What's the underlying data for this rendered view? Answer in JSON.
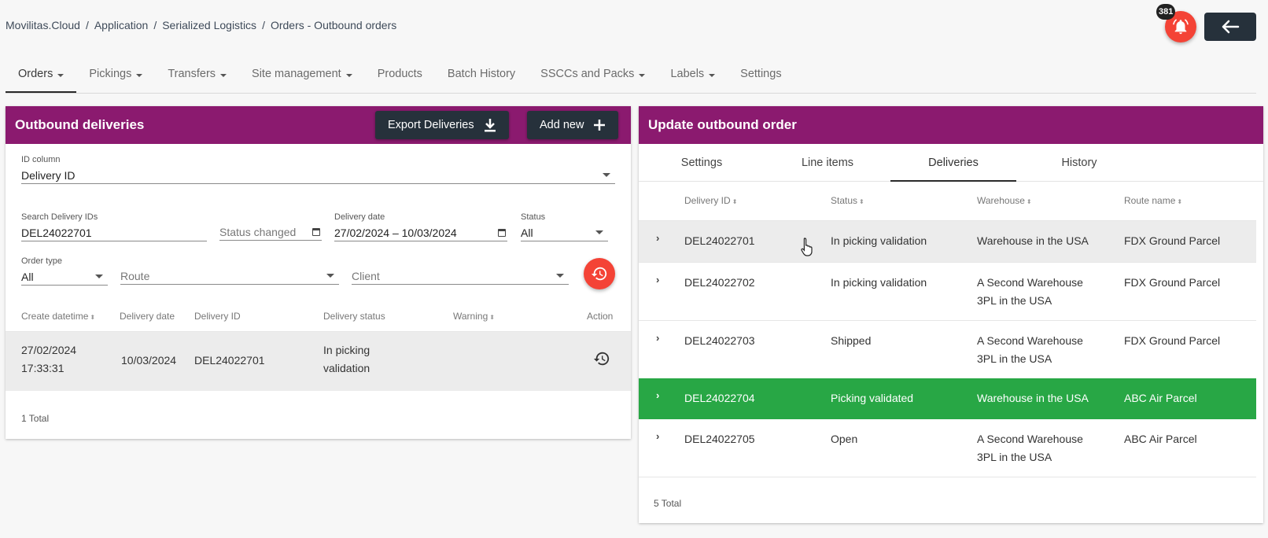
{
  "breadcrumb": [
    "Movilitas.Cloud",
    "Application",
    "Serialized Logistics",
    "Orders - Outbound orders"
  ],
  "notifications": {
    "count": "381",
    "icon": "bell-icon"
  },
  "colors": {
    "header": "#8b1a6f",
    "fab": "#f44336",
    "selected_row": "#28a745",
    "dark_button": "#26313b"
  },
  "nav": [
    {
      "label": "Orders",
      "dropdown": true,
      "active": true
    },
    {
      "label": "Pickings",
      "dropdown": true
    },
    {
      "label": "Transfers",
      "dropdown": true
    },
    {
      "label": "Site management",
      "dropdown": true
    },
    {
      "label": "Products",
      "dropdown": false
    },
    {
      "label": "Batch History",
      "dropdown": false
    },
    {
      "label": "SSCCs and Packs",
      "dropdown": true
    },
    {
      "label": "Labels",
      "dropdown": true
    },
    {
      "label": "Settings",
      "dropdown": false
    }
  ],
  "left": {
    "title": "Outbound deliveries",
    "export_label": "Export Deliveries",
    "add_label": "Add new",
    "id_column": {
      "label": "ID column",
      "value": "Delivery ID"
    },
    "search": {
      "label": "Search Delivery IDs",
      "value": "DEL24022701"
    },
    "status_changed": {
      "placeholder": "Status changed"
    },
    "delivery_date": {
      "label": "Delivery date",
      "value": "27/02/2024 – 10/03/2024"
    },
    "status": {
      "label": "Status",
      "value": "All"
    },
    "order_type": {
      "label": "Order type",
      "value": "All"
    },
    "route": {
      "placeholder": "Route"
    },
    "client": {
      "placeholder": "Client"
    },
    "columns": [
      "Create datetime",
      "Delivery date",
      "Delivery ID",
      "Delivery status",
      "Warning",
      "Action"
    ],
    "rows": [
      {
        "create_date": "27/02/2024",
        "create_time": "17:33:31",
        "delivery_date": "10/03/2024",
        "delivery_id": "DEL24022701",
        "status_1": "In picking",
        "status_2": "validation",
        "warning": ""
      }
    ],
    "total": "1 Total"
  },
  "right": {
    "title": "Update outbound order",
    "tabs": [
      "Settings",
      "Line items",
      "Deliveries",
      "History"
    ],
    "active_tab": "Deliveries",
    "columns": [
      "Delivery ID",
      "Status",
      "Warehouse",
      "Route name"
    ],
    "rows": [
      {
        "id": "DEL24022701",
        "status": "In picking validation",
        "wh1": "Warehouse in the USA",
        "wh2": "",
        "route": "FDX Ground Parcel"
      },
      {
        "id": "DEL24022702",
        "status": "In picking validation",
        "wh1": "A Second Warehouse",
        "wh2": "3PL in the USA",
        "route": "FDX Ground Parcel"
      },
      {
        "id": "DEL24022703",
        "status": "Shipped",
        "wh1": "A Second Warehouse",
        "wh2": "3PL in the USA",
        "route": "FDX Ground Parcel"
      },
      {
        "id": "DEL24022704",
        "status": "Picking validated",
        "wh1": "Warehouse in the USA",
        "wh2": "",
        "route": "ABC Air Parcel"
      },
      {
        "id": "DEL24022705",
        "status": "Open",
        "wh1": "A Second Warehouse",
        "wh2": "3PL in the USA",
        "route": "ABC Air Parcel"
      }
    ],
    "total": "5 Total"
  }
}
